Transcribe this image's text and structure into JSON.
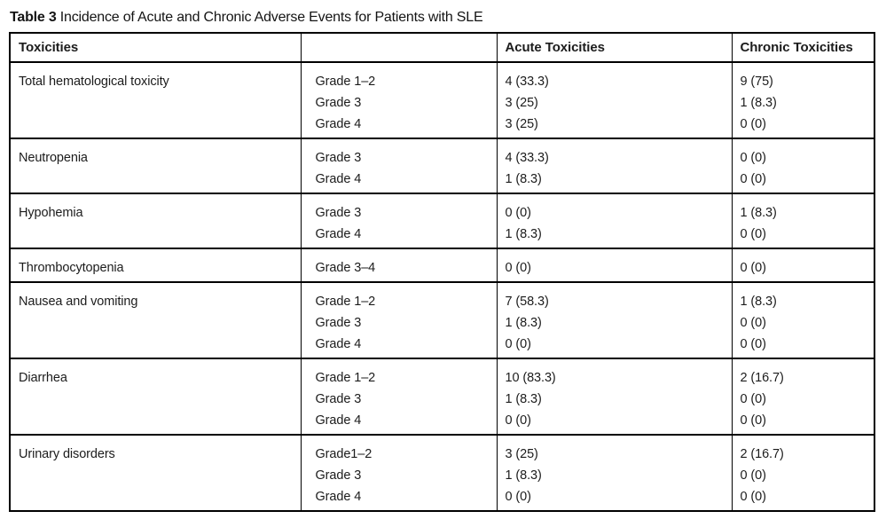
{
  "title": {
    "label": "Table 3",
    "text": "Incidence of Acute and Chronic Adverse Events for Patients with SLE"
  },
  "table": {
    "headers": {
      "toxicities": "Toxicities",
      "grade": "",
      "acute": "Acute Toxicities",
      "chronic": "Chronic Toxicities"
    },
    "sections": [
      {
        "toxicity": "Total hematological toxicity",
        "rows": [
          {
            "grade": "Grade 1–2",
            "acute": "4 (33.3)",
            "chronic": "9 (75)"
          },
          {
            "grade": "Grade 3",
            "acute": "3 (25)",
            "chronic": "1 (8.3)"
          },
          {
            "grade": "Grade 4",
            "acute": "3 (25)",
            "chronic": "0 (0)"
          }
        ]
      },
      {
        "toxicity": "Neutropenia",
        "rows": [
          {
            "grade": "Grade 3",
            "acute": "4 (33.3)",
            "chronic": "0 (0)"
          },
          {
            "grade": "Grade 4",
            "acute": "1 (8.3)",
            "chronic": "0 (0)"
          }
        ]
      },
      {
        "toxicity": "Hypohemia",
        "rows": [
          {
            "grade": "Grade 3",
            "acute": "0 (0)",
            "chronic": "1 (8.3)"
          },
          {
            "grade": "Grade 4",
            "acute": "1 (8.3)",
            "chronic": "0 (0)"
          }
        ]
      },
      {
        "toxicity": "Thrombocytopenia",
        "rows": [
          {
            "grade": "Grade 3–4",
            "acute": "0 (0)",
            "chronic": "0 (0)"
          }
        ]
      },
      {
        "toxicity": "Nausea and vomiting",
        "rows": [
          {
            "grade": "Grade 1–2",
            "acute": "7 (58.3)",
            "chronic": "1 (8.3)"
          },
          {
            "grade": "Grade 3",
            "acute": "1 (8.3)",
            "chronic": "0 (0)"
          },
          {
            "grade": "Grade 4",
            "acute": "0 (0)",
            "chronic": "0 (0)"
          }
        ]
      },
      {
        "toxicity": "Diarrhea",
        "rows": [
          {
            "grade": "Grade 1–2",
            "acute": "10 (83.3)",
            "chronic": "2 (16.7)"
          },
          {
            "grade": "Grade 3",
            "acute": "1 (8.3)",
            "chronic": "0 (0)"
          },
          {
            "grade": "Grade 4",
            "acute": "0 (0)",
            "chronic": "0 (0)"
          }
        ]
      },
      {
        "toxicity": "Urinary disorders",
        "rows": [
          {
            "grade": "Grade1–2",
            "acute": "3 (25)",
            "chronic": "2 (16.7)"
          },
          {
            "grade": "Grade 3",
            "acute": "1 (8.3)",
            "chronic": "0 (0)"
          },
          {
            "grade": "Grade 4",
            "acute": "0 (0)",
            "chronic": "0 (0)"
          }
        ]
      }
    ]
  }
}
